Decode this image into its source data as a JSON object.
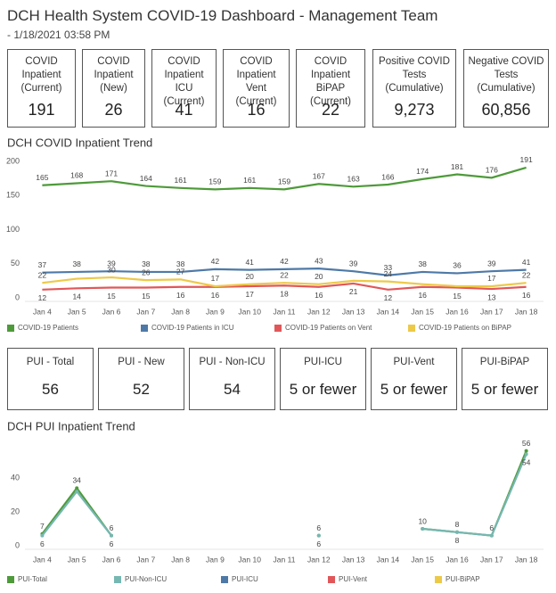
{
  "header": {
    "title": "DCH Health System COVID-19 Dashboard - Management Team",
    "subtitle": "- 1/18/2021 03:58 PM"
  },
  "kpis": [
    {
      "label": "COVID Inpatient (Current)",
      "value": "191"
    },
    {
      "label": "COVID Inpatient (New)",
      "value": "26"
    },
    {
      "label": "COVID Inpatient ICU (Current)",
      "value": "41"
    },
    {
      "label": "COVID Inpatient Vent (Current)",
      "value": "16"
    },
    {
      "label": "COVID Inpatient BiPAP (Current)",
      "value": "22"
    },
    {
      "label": "Positive COVID Tests (Cumulative)",
      "value": "9,273"
    },
    {
      "label": "Negative COVID Tests (Cumulative)",
      "value": "60,856"
    }
  ],
  "pui_kpis": [
    {
      "label": "PUI - Total",
      "value": "56"
    },
    {
      "label": "PUI - New",
      "value": "52"
    },
    {
      "label": "PUI - Non-ICU",
      "value": "54"
    },
    {
      "label": "PUI-ICU",
      "value": "5 or fewer"
    },
    {
      "label": "PUI-Vent",
      "value": "5 or fewer"
    },
    {
      "label": "PUI-BiPAP",
      "value": "5 or fewer"
    }
  ],
  "chart_data": [
    {
      "type": "line",
      "title": "DCH COVID Inpatient Trend",
      "categories": [
        "Jan 4",
        "Jan 5",
        "Jan 6",
        "Jan 7",
        "Jan 8",
        "Jan 9",
        "Jan 10",
        "Jan 11",
        "Jan 12",
        "Jan 13",
        "Jan 14",
        "Jan 15",
        "Jan 16",
        "Jan 17",
        "Jan 18"
      ],
      "ylim": [
        0,
        200
      ],
      "yticks": [
        0,
        50,
        100,
        150,
        200
      ],
      "grid": false,
      "markers": false,
      "series": [
        {
          "name": "COVID-19 Patients",
          "color": "#4e9a3a",
          "values": [
            165,
            168,
            171,
            164,
            161,
            159,
            161,
            159,
            167,
            163,
            166,
            174,
            181,
            176,
            191
          ]
        },
        {
          "name": "COVID-19 Patients in ICU",
          "color": "#4e79a7",
          "values": [
            37,
            38,
            39,
            38,
            38,
            42,
            41,
            42,
            43,
            39,
            33,
            38,
            36,
            39,
            41
          ]
        },
        {
          "name": "COVID-19 Patients on Vent",
          "color": "#e15759",
          "values": [
            12,
            14,
            15,
            15,
            16,
            16,
            17,
            18,
            16,
            21,
            12,
            16,
            15,
            13,
            16
          ]
        },
        {
          "name": "COVID-19 Patients on BiPAP",
          "color": "#edc948",
          "values": [
            22,
            28,
            30,
            26,
            27,
            17,
            20,
            22,
            20,
            25,
            24,
            20,
            17,
            17,
            22
          ],
          "value_labels": [
            "22",
            null,
            "30",
            "26",
            "27",
            "17",
            "20",
            "22",
            "20",
            null,
            "24",
            null,
            null,
            "17",
            "22"
          ]
        }
      ]
    },
    {
      "type": "line",
      "title": "DCH PUI Inpatient Trend",
      "categories": [
        "Jan 4",
        "Jan 5",
        "Jan 6",
        "Jan 7",
        "Jan 8",
        "Jan 9",
        "Jan 10",
        "Jan 11",
        "Jan 12",
        "Jan 13",
        "Jan 14",
        "Jan 15",
        "Jan 16",
        "Jan 17",
        "Jan 18"
      ],
      "ylim": [
        0,
        60
      ],
      "yticks": [
        0,
        20,
        40
      ],
      "grid": false,
      "markers": true,
      "series": [
        {
          "name": "PUI-Total",
          "color": "#4e9a3a",
          "values": [
            7,
            34,
            6,
            null,
            null,
            null,
            null,
            null,
            6,
            null,
            null,
            10,
            8,
            6,
            56
          ],
          "value_labels": [
            "7",
            "34",
            "6",
            null,
            null,
            null,
            null,
            null,
            "6",
            null,
            null,
            "10",
            "8",
            "6",
            "56"
          ]
        },
        {
          "name": "PUI-Non-ICU",
          "color": "#76b7b2",
          "values": [
            6,
            32,
            6,
            null,
            null,
            null,
            null,
            null,
            6,
            null,
            null,
            10,
            8,
            6,
            54
          ],
          "value_labels": [
            "6",
            null,
            "6",
            null,
            null,
            null,
            null,
            null,
            "6",
            null,
            null,
            null,
            "8",
            null,
            "54"
          ]
        },
        {
          "name": "PUI-ICU",
          "color": "#4e79a7",
          "values": [
            null,
            null,
            null,
            null,
            null,
            null,
            null,
            null,
            null,
            null,
            null,
            null,
            null,
            null,
            null
          ]
        },
        {
          "name": "PUI-Vent",
          "color": "#e15759",
          "values": [
            null,
            null,
            null,
            null,
            null,
            null,
            null,
            null,
            null,
            null,
            null,
            null,
            null,
            null,
            null
          ]
        },
        {
          "name": "PUI-BiPAP",
          "color": "#edc948",
          "values": [
            null,
            null,
            null,
            null,
            null,
            null,
            null,
            null,
            null,
            null,
            null,
            null,
            null,
            null,
            null
          ]
        }
      ]
    }
  ]
}
